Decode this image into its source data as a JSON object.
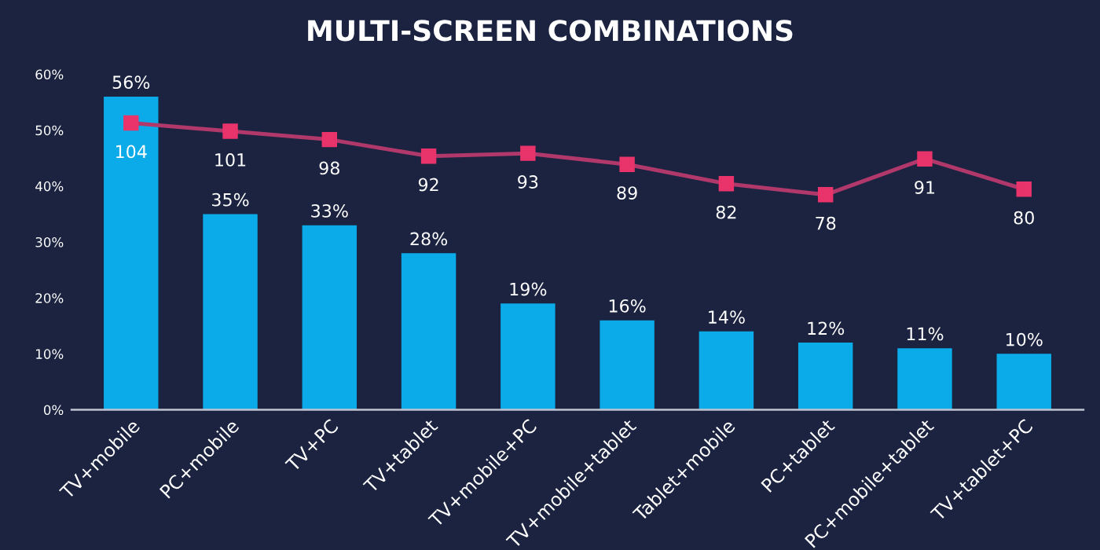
{
  "chart_data": {
    "type": "bar",
    "title": "MULTI-SCREEN COMBINATIONS",
    "categories": [
      "TV+mobile",
      "PC+mobile",
      "TV+PC",
      "TV+tablet",
      "TV+mobile+PC",
      "TV+mobile+tablet",
      "Tablet+mobile",
      "PC+tablet",
      "PC+mobile+tablet",
      "TV+tablet+PC"
    ],
    "ylim": [
      0,
      60
    ],
    "yticks": [
      {
        "value": 0,
        "label": "0%"
      },
      {
        "value": 10,
        "label": "10%"
      },
      {
        "value": 20,
        "label": "20%"
      },
      {
        "value": 30,
        "label": "30%"
      },
      {
        "value": 40,
        "label": "40%"
      },
      {
        "value": 50,
        "label": "50%"
      },
      {
        "value": 60,
        "label": "60%"
      }
    ],
    "tick_labels": "xy",
    "series": [
      {
        "color": "#0aabe8",
        "values": [
          56,
          35,
          33,
          28,
          19,
          16,
          14,
          12,
          11,
          10
        ],
        "value_labels": [
          "56%",
          "35%",
          "33%",
          "28%",
          "19%",
          "16%",
          "14%",
          "12%",
          "11%",
          "10%"
        ]
      },
      {
        "type": "line",
        "axis": "y2",
        "color": "#b0386a",
        "marker": "square",
        "values": [
          104,
          101,
          98,
          92,
          93,
          89,
          82,
          78,
          91,
          80
        ],
        "value_labels": [
          "104",
          "101",
          "98",
          "92",
          "93",
          "89",
          "82",
          "78",
          "91",
          "80"
        ]
      }
    ]
  }
}
